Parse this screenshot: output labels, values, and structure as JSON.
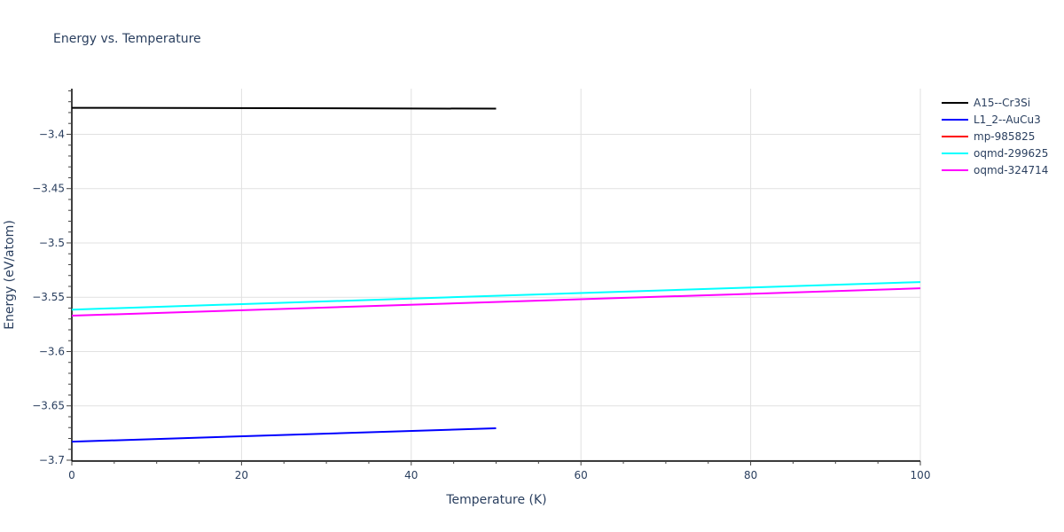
{
  "chart_data": {
    "type": "line",
    "title": "Energy vs. Temperature",
    "xlabel": "Temperature (K)",
    "ylabel": "Energy (eV/atom)",
    "xlim": [
      0,
      100
    ],
    "ylim": [
      -3.7,
      -3.358
    ],
    "x_ticks": [
      0,
      20,
      40,
      60,
      80,
      100
    ],
    "y_ticks": [
      -3.4,
      -3.45,
      -3.5,
      -3.55,
      -3.6,
      -3.65,
      -3.7
    ],
    "y_tick_labels": [
      "−3.4",
      "−3.45",
      "−3.5",
      "−3.55",
      "−3.6",
      "−3.65",
      "−3.7"
    ],
    "grid": true,
    "legend_position": "right",
    "series": [
      {
        "name": "A15--Cr3Si",
        "color": "#000000",
        "x": [
          0,
          50
        ],
        "y": [
          -3.3756,
          -3.3764
        ]
      },
      {
        "name": "L1_2--AuCu3",
        "color": "#0000ff",
        "x": [
          0,
          50
        ],
        "y": [
          -3.683,
          -3.6706
        ]
      },
      {
        "name": "mp-985825",
        "color": "#ff0000",
        "x": [],
        "y": []
      },
      {
        "name": "oqmd-299625",
        "color": "#00ffff",
        "x": [
          0,
          100
        ],
        "y": [
          -3.5614,
          -3.536
        ]
      },
      {
        "name": "oqmd-324714",
        "color": "#ff00ff",
        "x": [
          0,
          100
        ],
        "y": [
          -3.567,
          -3.5418
        ]
      }
    ]
  },
  "legend": {
    "items": [
      {
        "label": "A15--Cr3Si",
        "color": "#000000"
      },
      {
        "label": "L1_2--AuCu3",
        "color": "#0000ff"
      },
      {
        "label": "mp-985825",
        "color": "#ff0000"
      },
      {
        "label": "oqmd-299625",
        "color": "#00ffff"
      },
      {
        "label": "oqmd-324714",
        "color": "#ff00ff"
      }
    ]
  }
}
